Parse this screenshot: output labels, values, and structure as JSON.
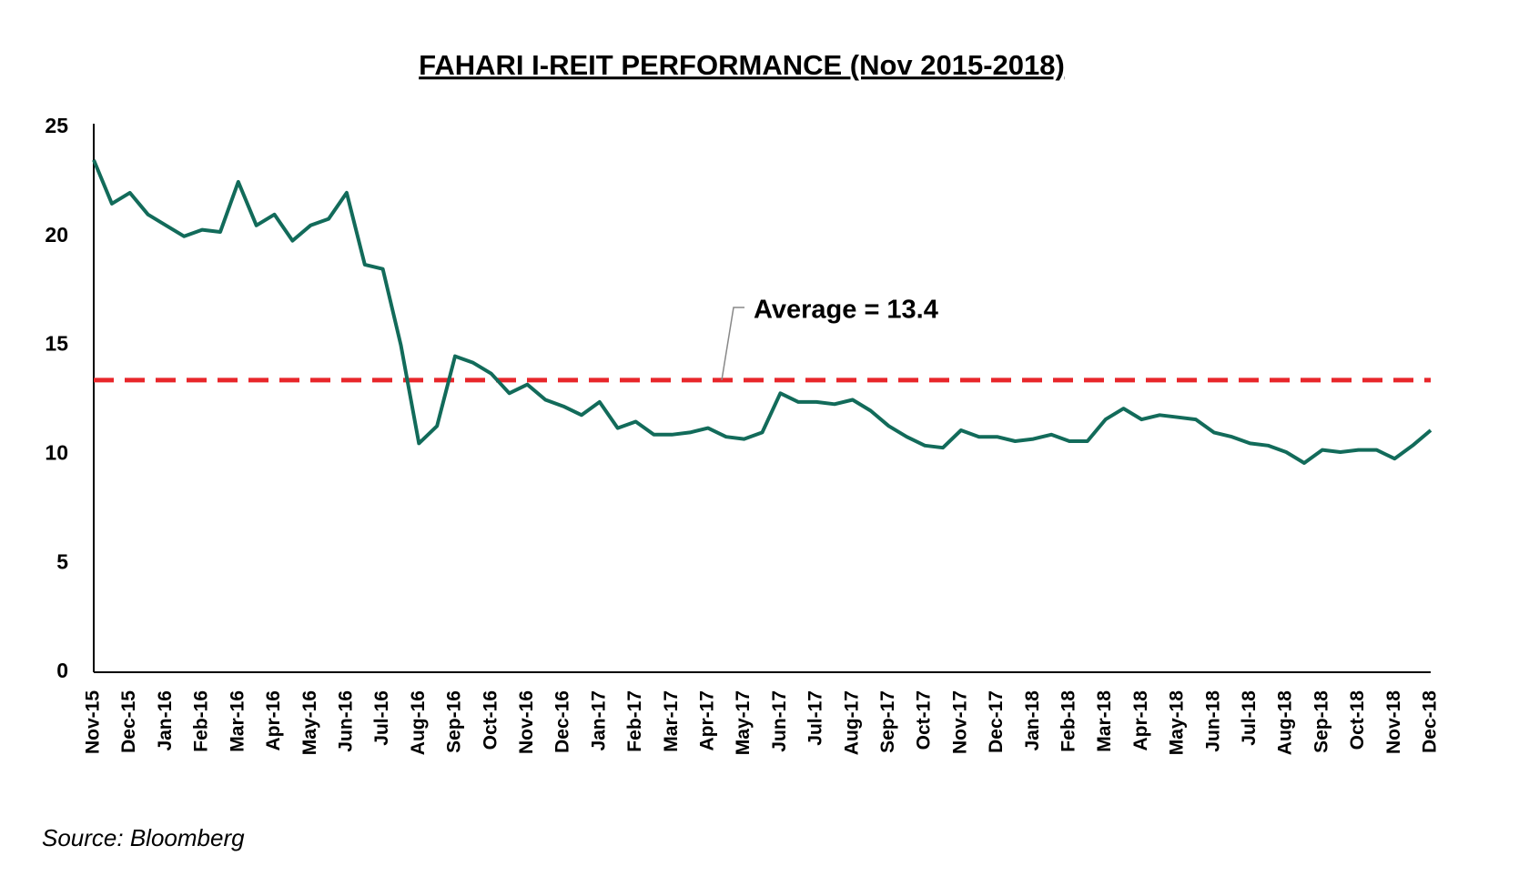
{
  "chart_data": {
    "type": "line",
    "title": "FAHARI I-REIT PERFORMANCE  (Nov 2015-2018)",
    "source": "Source: Bloomberg",
    "categories": [
      "Nov-15",
      null,
      "Dec-15",
      null,
      "Jan-16",
      null,
      "Feb-16",
      null,
      "Mar-16",
      null,
      "Apr-16",
      null,
      "May-16",
      null,
      "Jun-16",
      null,
      "Jul-16",
      null,
      "Aug-16",
      null,
      "Sep-16",
      null,
      "Oct-16",
      null,
      "Nov-16",
      null,
      "Dec-16",
      null,
      "Jan-17",
      null,
      "Feb-17",
      null,
      "Mar-17",
      null,
      "Apr-17",
      null,
      "May-17",
      null,
      "Jun-17",
      null,
      "Jul-17",
      null,
      "Aug-17",
      null,
      "Sep-17",
      null,
      "Oct-17",
      null,
      "Nov-17",
      null,
      "Dec-17",
      null,
      "Jan-18",
      null,
      "Feb-18",
      null,
      "Mar-18",
      null,
      "Apr-18",
      null,
      "May-18",
      null,
      "Jun-18",
      null,
      "Jul-18",
      null,
      "Aug-18",
      null,
      "Sep-18",
      null,
      "Oct-18",
      null,
      "Nov-18",
      null,
      "Dec-18"
    ],
    "series": [
      {
        "name": "Fahari I-REIT",
        "color": "#126b5a",
        "values": [
          23.5,
          21.5,
          22,
          21,
          20.5,
          20,
          20.3,
          20.2,
          22.5,
          20.5,
          21,
          19.8,
          20.5,
          20.8,
          22,
          18.7,
          18.5,
          15,
          10.5,
          11.3,
          14.5,
          14.2,
          13.7,
          12.8,
          13.2,
          12.5,
          12.2,
          11.8,
          12.4,
          11.2,
          11.5,
          10.9,
          10.9,
          11,
          11.2,
          10.8,
          10.7,
          11,
          12.8,
          12.4,
          12.4,
          12.3,
          12.5,
          12,
          11.3,
          10.8,
          10.4,
          10.3,
          11.1,
          10.8,
          10.8,
          10.6,
          10.7,
          10.9,
          10.6,
          10.6,
          11.6,
          12.1,
          11.6,
          11.8,
          11.7,
          11.6,
          11,
          10.8,
          10.5,
          10.4,
          10.1,
          9.6,
          10.2,
          10.1,
          10.2,
          10.2,
          9.8,
          10.4,
          11.1
        ]
      }
    ],
    "average": {
      "value": 13.4,
      "label": "Average = 13.4",
      "color": "#e8262a"
    },
    "ylim": [
      0,
      25
    ],
    "yticks": [
      0,
      5,
      10,
      15,
      20,
      25
    ],
    "grid": false
  }
}
